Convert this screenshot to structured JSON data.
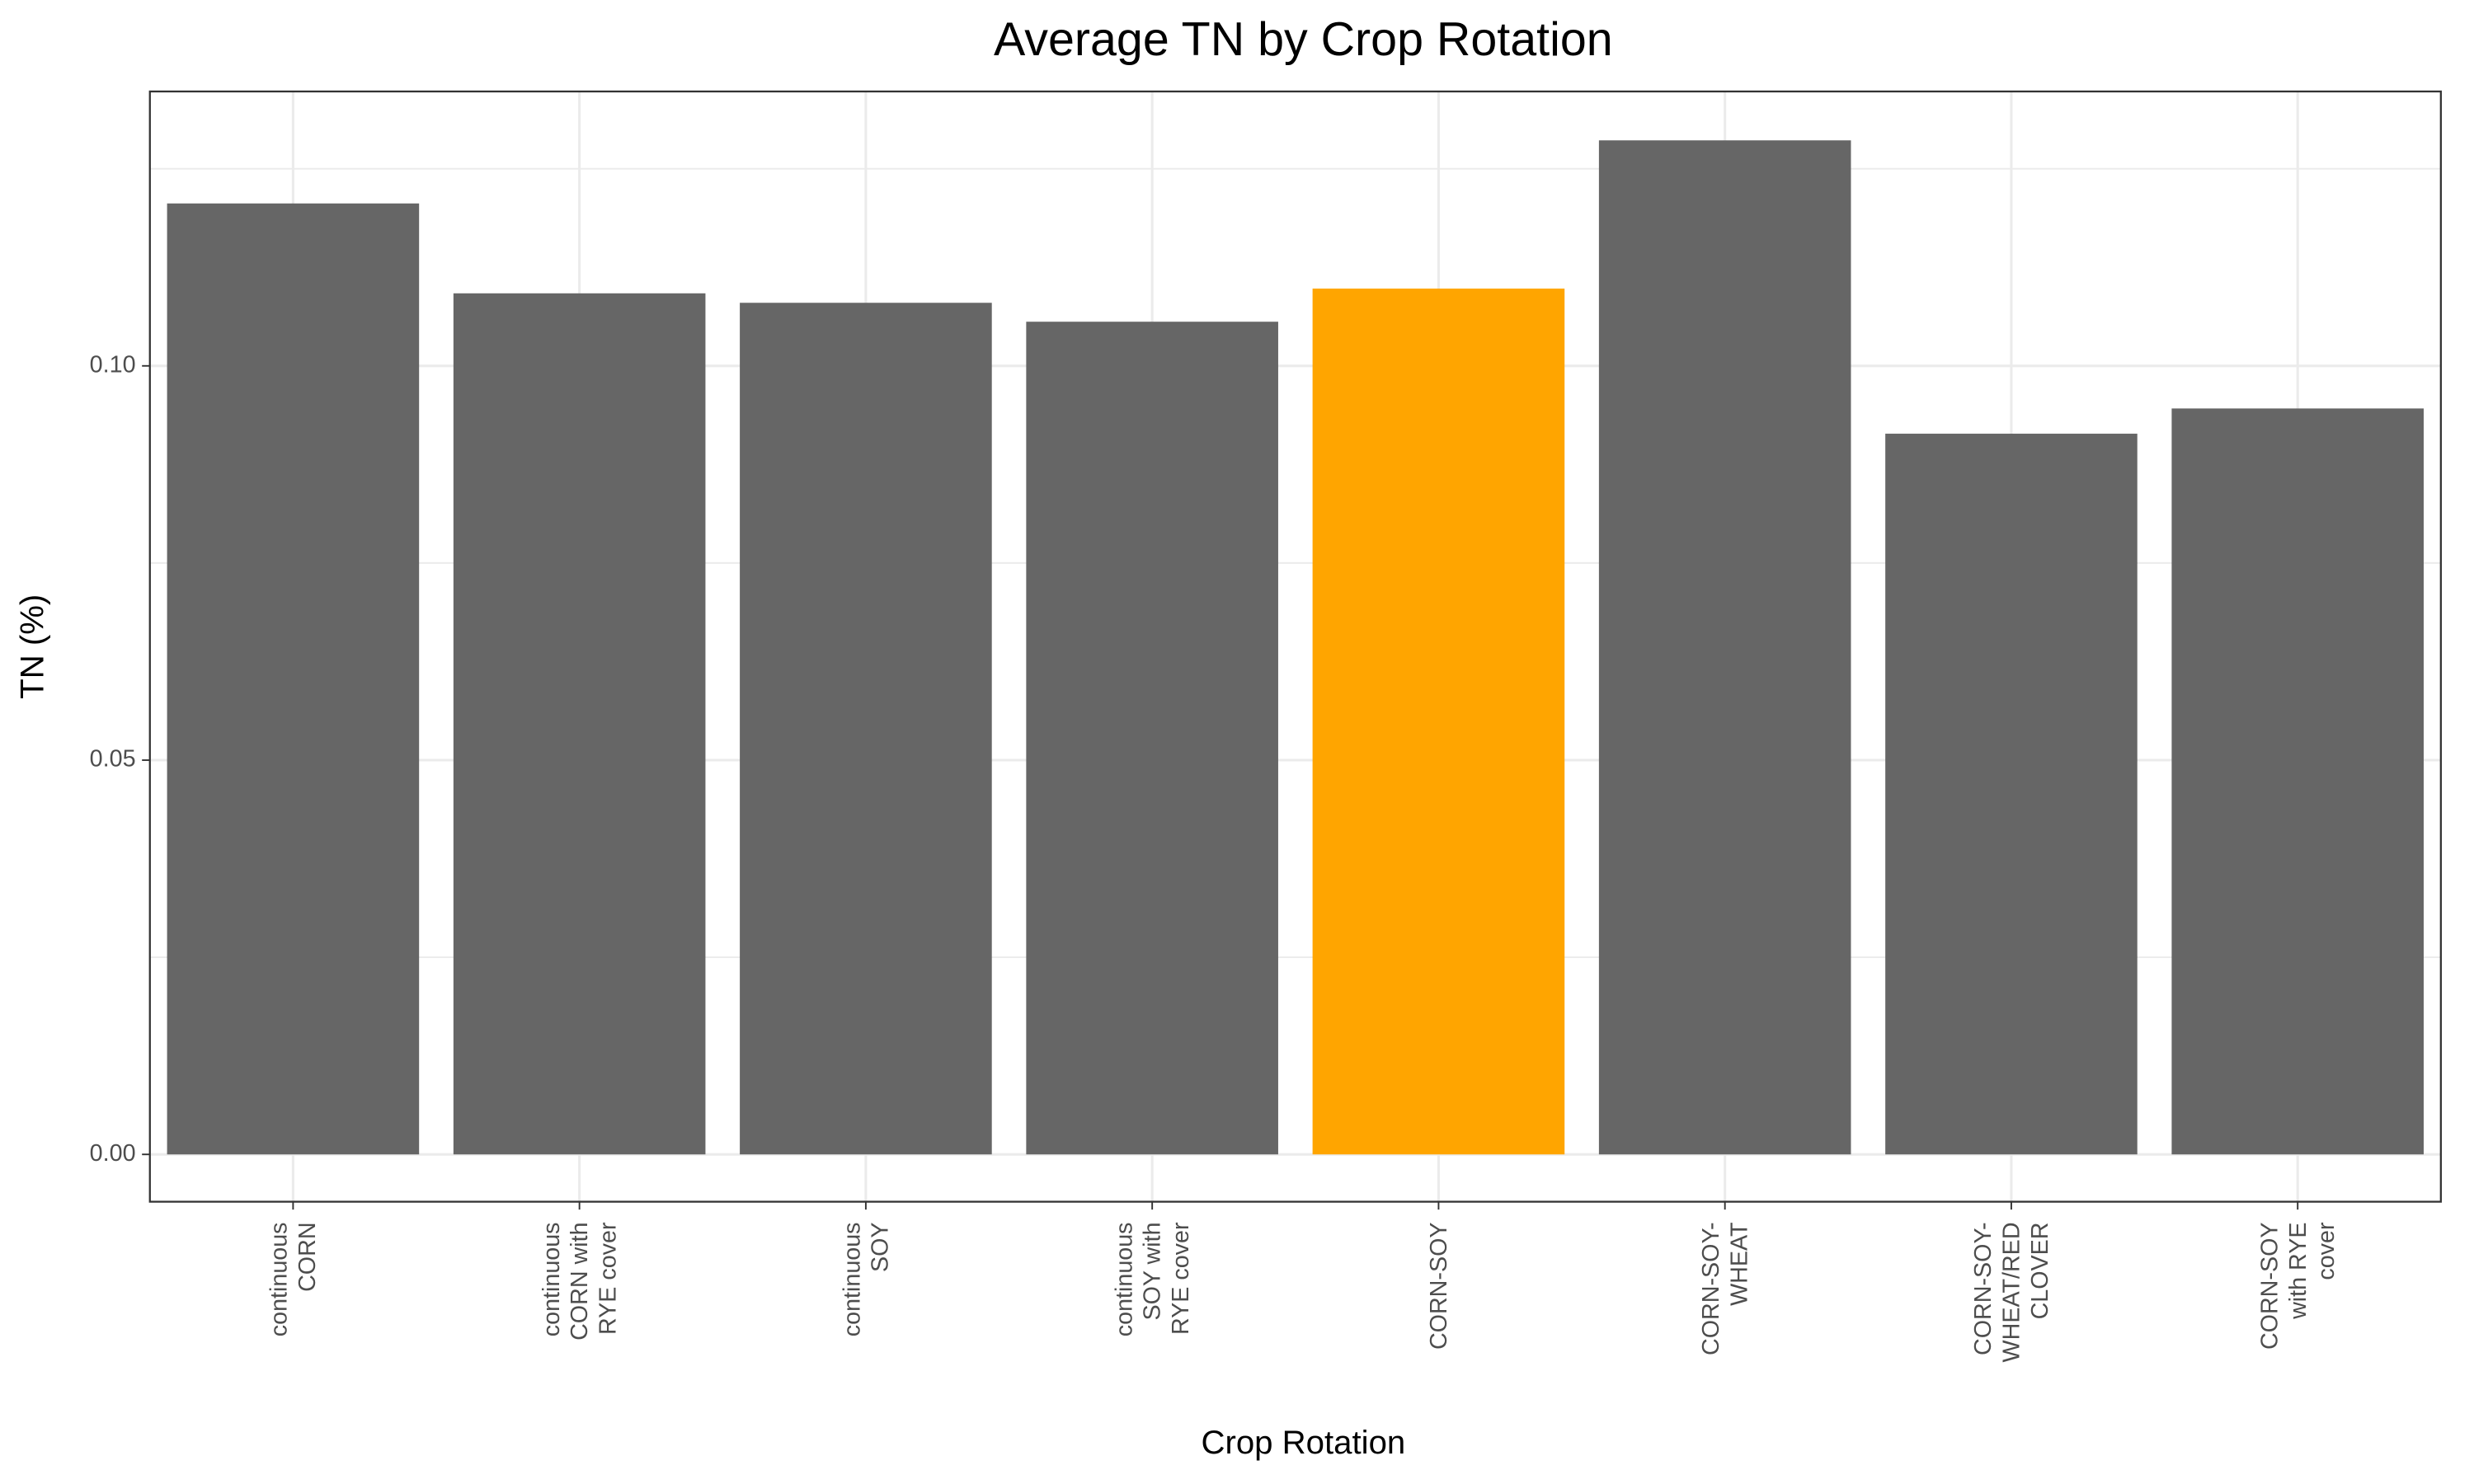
{
  "chart_data": {
    "type": "bar",
    "title": "Average TN by Crop Rotation",
    "x_label": "Crop Rotation",
    "y_label": "TN (%)",
    "categories": [
      "continuous\nCORN",
      "continuous\nCORN with\nRYE cover",
      "continuous\nSOY",
      "continuous\nSOY with\nRYE cover",
      "CORN-SOY",
      "CORN-SOY-\nWHEAT",
      "CORN-SOY-\nWHEAT/RED\nCLOVER",
      "CORN-SOY\nwith RYE\ncover"
    ],
    "values": [
      0.1206,
      0.1092,
      0.108,
      0.1056,
      0.1098,
      0.1286,
      0.0914,
      0.0946
    ],
    "colors": [
      "#666666",
      "#666666",
      "#666666",
      "#666666",
      "#ffa500",
      "#666666",
      "#666666",
      "#666666"
    ],
    "ylim": [
      -0.006,
      0.1348
    ],
    "yticks": [
      {
        "value": 0,
        "label": "0.00"
      },
      {
        "value": 0.05,
        "label": "0.05"
      },
      {
        "value": 0.1,
        "label": "0.10"
      }
    ],
    "grid": true
  }
}
